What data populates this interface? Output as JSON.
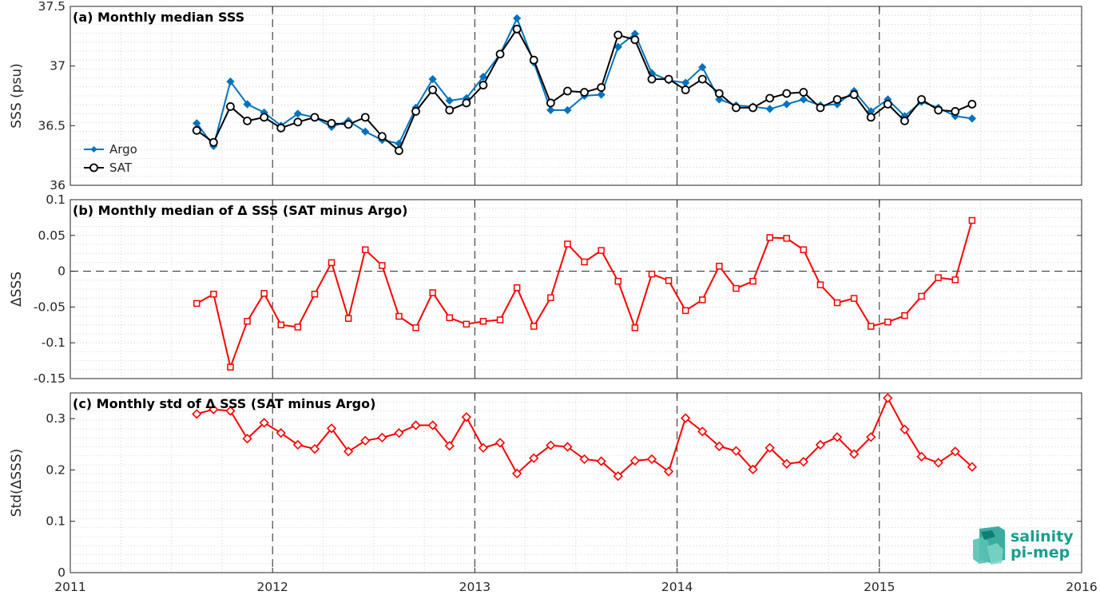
{
  "logo": {
    "line1": "salinity",
    "line2": "pi-mep",
    "color": "#1a9e8f"
  },
  "colors": {
    "argo": "#0072BD",
    "sat": "#000000",
    "delta": "#FF0000"
  },
  "x_axis": {
    "range": [
      2011,
      2016
    ],
    "tick_labels": [
      "2011",
      "2012",
      "2013",
      "2014",
      "2015",
      "2016"
    ],
    "year_lines": [
      2012,
      2013,
      2014,
      2015
    ]
  },
  "chart_data": [
    {
      "type": "line",
      "title": "(a) Monthly median SSS",
      "ylabel": "SSS (psu)",
      "ylim": [
        36,
        37.5
      ],
      "yticks": [
        "36",
        "36.5",
        "37",
        "37.5"
      ],
      "grid": "dotted",
      "legend": "left",
      "x_months": [
        "2011-08",
        "2011-09",
        "2011-10",
        "2011-11",
        "2011-12",
        "2012-01",
        "2012-02",
        "2012-03",
        "2012-04",
        "2012-05",
        "2012-06",
        "2012-07",
        "2012-08",
        "2012-09",
        "2012-10",
        "2012-11",
        "2012-12",
        "2013-01",
        "2013-02",
        "2013-03",
        "2013-04",
        "2013-05",
        "2013-06",
        "2013-07",
        "2013-08",
        "2013-09",
        "2013-10",
        "2013-11",
        "2013-12",
        "2014-01",
        "2014-02",
        "2014-03",
        "2014-04",
        "2014-05",
        "2014-06",
        "2014-07",
        "2014-08",
        "2014-09",
        "2014-10",
        "2014-11",
        "2014-12",
        "2015-01",
        "2015-02",
        "2015-03",
        "2015-04",
        "2015-05",
        "2015-06"
      ],
      "series": [
        {
          "name": "Argo",
          "marker": "diamond",
          "values": [
            36.52,
            36.33,
            36.87,
            36.68,
            36.61,
            36.5,
            36.6,
            36.57,
            36.49,
            36.54,
            36.45,
            36.38,
            36.35,
            36.65,
            36.89,
            36.71,
            36.73,
            36.91,
            37.1,
            37.4,
            37.03,
            36.63,
            36.63,
            36.75,
            36.76,
            37.16,
            37.27,
            36.94,
            36.88,
            36.86,
            36.99,
            36.72,
            36.67,
            36.66,
            36.64,
            36.68,
            36.72,
            36.67,
            36.68,
            36.79,
            36.62,
            36.72,
            36.58,
            36.7,
            36.65,
            36.58,
            36.56
          ]
        },
        {
          "name": "SAT",
          "marker": "circle",
          "values": [
            36.46,
            36.36,
            36.66,
            36.54,
            36.57,
            36.48,
            36.53,
            36.57,
            36.52,
            36.51,
            36.57,
            36.41,
            36.29,
            36.62,
            36.8,
            36.63,
            36.69,
            36.84,
            37.1,
            37.31,
            37.05,
            36.69,
            36.79,
            36.78,
            36.82,
            37.26,
            37.22,
            36.89,
            36.89,
            36.8,
            36.89,
            36.77,
            36.65,
            36.65,
            36.73,
            36.77,
            36.78,
            36.65,
            36.72,
            36.76,
            36.57,
            36.68,
            36.54,
            36.72,
            36.63,
            36.62,
            36.68
          ]
        }
      ]
    },
    {
      "type": "line",
      "title": "(b) Monthly median of Δ SSS (SAT minus Argo)",
      "ylabel": "ΔSSS",
      "ylim": [
        -0.15,
        0.1
      ],
      "yticks": [
        "-0.15",
        "-0.1",
        "-0.05",
        "0",
        "0.05",
        "0.1"
      ],
      "grid": "dotted",
      "zero_line": "dashed",
      "series": [
        {
          "marker": "square",
          "values": [
            -0.045,
            -0.032,
            -0.134,
            -0.07,
            -0.031,
            -0.075,
            -0.078,
            -0.032,
            0.012,
            -0.066,
            0.03,
            0.008,
            -0.063,
            -0.079,
            -0.03,
            -0.065,
            -0.074,
            -0.07,
            -0.068,
            -0.023,
            -0.077,
            -0.037,
            0.038,
            0.013,
            0.029,
            -0.014,
            -0.079,
            -0.004,
            -0.013,
            -0.055,
            -0.04,
            0.007,
            -0.024,
            -0.014,
            0.047,
            0.046,
            0.03,
            -0.019,
            -0.044,
            -0.038,
            -0.077,
            -0.071,
            -0.062,
            -0.035,
            -0.009,
            -0.012,
            0.071
          ]
        }
      ]
    },
    {
      "type": "line",
      "title": "(c) Monthly std of Δ SSS (SAT minus Argo)",
      "ylabel": "Std(ΔSSS)",
      "ylim": [
        0,
        0.35
      ],
      "yticks": [
        "0",
        "0.1",
        "0.2",
        "0.3"
      ],
      "grid": "dotted",
      "series": [
        {
          "marker": "diamond",
          "values": [
            0.309,
            0.318,
            0.315,
            0.261,
            0.292,
            0.272,
            0.249,
            0.241,
            0.281,
            0.236,
            0.257,
            0.263,
            0.272,
            0.287,
            0.287,
            0.247,
            0.303,
            0.243,
            0.253,
            0.193,
            0.223,
            0.248,
            0.245,
            0.221,
            0.217,
            0.188,
            0.218,
            0.221,
            0.197,
            0.301,
            0.275,
            0.246,
            0.237,
            0.201,
            0.243,
            0.212,
            0.216,
            0.249,
            0.264,
            0.231,
            0.264,
            0.34,
            0.279,
            0.226,
            0.214,
            0.236,
            0.206
          ]
        }
      ]
    }
  ]
}
